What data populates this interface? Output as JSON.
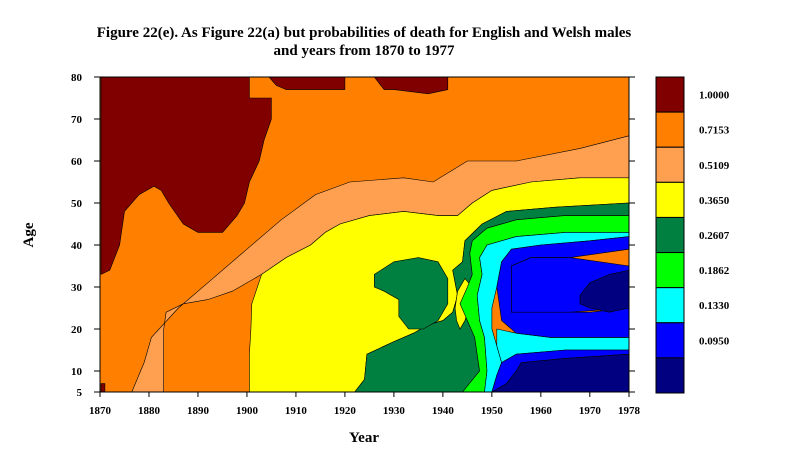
{
  "chart_data": {
    "type": "heatmap",
    "title": "Figure 22(e). As Figure 22(a) but probabilities of death for English and Welsh males",
    "subtitle": "and years from 1870 to 1977",
    "xlabel": "Year",
    "ylabel": "Age",
    "xlim": [
      1870,
      1978
    ],
    "ylim": [
      5,
      80
    ],
    "x_ticks": [
      "1870",
      "1880",
      "1890",
      "1900",
      "1910",
      "1920",
      "1930",
      "1940",
      "1950",
      "1960",
      "1970",
      "1978"
    ],
    "x_tick_values": [
      1870,
      1880,
      1890,
      1900,
      1910,
      1920,
      1930,
      1940,
      1950,
      1960,
      1970,
      1978
    ],
    "y_ticks": [
      "5",
      "10",
      "20",
      "30",
      "40",
      "50",
      "60",
      "70",
      "80"
    ],
    "y_tick_values": [
      5,
      10,
      20,
      30,
      40,
      50,
      60,
      70,
      80
    ],
    "legend": {
      "placement": "right",
      "levels": [
        {
          "label": "1.0000",
          "color": "#800000"
        },
        {
          "label": "0.7153",
          "color": "#ff8000"
        },
        {
          "label": "0.5109",
          "color": "#ffa050"
        },
        {
          "label": "0.3650",
          "color": "#ffff00"
        },
        {
          "label": "0.2607",
          "color": "#008040"
        },
        {
          "label": "0.1862",
          "color": "#00ff00"
        },
        {
          "label": "0.1330",
          "color": "#00ffff"
        },
        {
          "label": "0.0950",
          "color": "#0000ff"
        },
        {
          "label": "",
          "color": "#000080"
        }
      ]
    },
    "regions": [
      {
        "level": 0,
        "points": [
          [
            1870.2,
            80
          ],
          [
            1900.5,
            80
          ],
          [
            1900.5,
            75
          ],
          [
            1905,
            75
          ],
          [
            1905,
            70
          ],
          [
            1903.5,
            65
          ],
          [
            1902.5,
            60
          ],
          [
            1900.5,
            55
          ],
          [
            1899.5,
            50
          ],
          [
            1898,
            47
          ],
          [
            1895,
            43
          ],
          [
            1890,
            43
          ],
          [
            1887,
            45
          ],
          [
            1884,
            50
          ],
          [
            1882.5,
            53
          ],
          [
            1881,
            54
          ],
          [
            1878,
            52
          ],
          [
            1875,
            48
          ],
          [
            1874,
            40
          ],
          [
            1872,
            34
          ],
          [
            1870.2,
            33
          ]
        ]
      },
      {
        "level": 0,
        "points": [
          [
            1904.5,
            80
          ],
          [
            1920,
            80
          ],
          [
            1920,
            77
          ],
          [
            1912,
            77
          ],
          [
            1908,
            77
          ],
          [
            1906,
            78
          ]
        ]
      },
      {
        "level": 0,
        "points": [
          [
            1926,
            80
          ],
          [
            1941,
            80
          ],
          [
            1941,
            77
          ],
          [
            1937,
            76
          ],
          [
            1930,
            77
          ],
          [
            1928,
            77
          ]
        ]
      },
      {
        "level": 2,
        "points": [
          [
            1876.5,
            5
          ],
          [
            1883,
            5
          ],
          [
            1883,
            10
          ],
          [
            1883,
            15
          ],
          [
            1883,
            20
          ],
          [
            1883.5,
            24
          ],
          [
            1887,
            26
          ],
          [
            1892,
            27
          ],
          [
            1897,
            29
          ],
          [
            1903,
            33
          ],
          [
            1908,
            37
          ],
          [
            1913,
            40
          ],
          [
            1916,
            43
          ],
          [
            1919,
            45
          ],
          [
            1925,
            47
          ],
          [
            1932,
            48
          ],
          [
            1939,
            47
          ],
          [
            1943,
            47
          ],
          [
            1946,
            50
          ],
          [
            1950,
            53
          ],
          [
            1958,
            55
          ],
          [
            1968,
            56
          ],
          [
            1978,
            56
          ],
          [
            1978,
            66
          ],
          [
            1968,
            63
          ],
          [
            1955,
            60
          ],
          [
            1945,
            60
          ],
          [
            1938,
            55
          ],
          [
            1932,
            56
          ],
          [
            1921,
            55
          ],
          [
            1914,
            52
          ],
          [
            1907,
            46
          ],
          [
            1900,
            39
          ],
          [
            1892,
            31
          ],
          [
            1886,
            25
          ],
          [
            1880.5,
            18
          ],
          [
            1879,
            12
          ]
        ]
      },
      {
        "level": 3,
        "points": [
          [
            1900.5,
            5
          ],
          [
            1915,
            5
          ],
          [
            1922,
            5
          ],
          [
            1924,
            8
          ],
          [
            1924.5,
            14
          ],
          [
            1930,
            17
          ],
          [
            1934,
            19
          ],
          [
            1937,
            21
          ],
          [
            1940,
            22
          ],
          [
            1942,
            24
          ],
          [
            1943,
            28
          ],
          [
            1942,
            34
          ],
          [
            1944,
            36
          ],
          [
            1944.5,
            41
          ],
          [
            1948,
            45
          ],
          [
            1953,
            48
          ],
          [
            1963,
            49
          ],
          [
            1978,
            50
          ],
          [
            1978,
            56
          ],
          [
            1968,
            56
          ],
          [
            1958,
            55
          ],
          [
            1950,
            53
          ],
          [
            1946,
            50
          ],
          [
            1943,
            47
          ],
          [
            1939,
            47
          ],
          [
            1932,
            48
          ],
          [
            1925,
            47
          ],
          [
            1919,
            45
          ],
          [
            1916,
            43
          ],
          [
            1913,
            40
          ],
          [
            1908,
            37
          ],
          [
            1903,
            33
          ],
          [
            1901,
            26
          ],
          [
            1900.8,
            20
          ],
          [
            1900.5,
            14
          ],
          [
            1900.5,
            10
          ]
        ]
      },
      {
        "level": 4,
        "points": [
          [
            1922,
            5
          ],
          [
            1947,
            5
          ],
          [
            1947.5,
            10
          ],
          [
            1946.5,
            18
          ],
          [
            1945,
            22
          ],
          [
            1943.5,
            26
          ],
          [
            1945,
            30
          ],
          [
            1946,
            33
          ],
          [
            1945.5,
            38
          ],
          [
            1946,
            41
          ],
          [
            1949,
            44
          ],
          [
            1955,
            46
          ],
          [
            1965,
            47
          ],
          [
            1978,
            47
          ],
          [
            1978,
            50
          ],
          [
            1963,
            49
          ],
          [
            1953,
            48
          ],
          [
            1948,
            45
          ],
          [
            1944.5,
            41
          ],
          [
            1944,
            36
          ],
          [
            1942,
            34
          ],
          [
            1943,
            28
          ],
          [
            1942,
            24
          ],
          [
            1940,
            22
          ],
          [
            1937,
            21
          ],
          [
            1934,
            19
          ],
          [
            1930,
            17
          ],
          [
            1924.5,
            14
          ],
          [
            1924,
            8
          ]
        ]
      },
      {
        "level": 4,
        "points": [
          [
            1926,
            33
          ],
          [
            1930,
            36
          ],
          [
            1935,
            37
          ],
          [
            1939,
            36
          ],
          [
            1941,
            32
          ],
          [
            1941,
            26
          ],
          [
            1939,
            22
          ],
          [
            1936,
            20
          ],
          [
            1933,
            20
          ],
          [
            1931,
            23
          ],
          [
            1931,
            27
          ],
          [
            1928,
            29
          ],
          [
            1926,
            30
          ]
        ]
      },
      {
        "level": 4,
        "points": [
          [
            1943.5,
            20
          ],
          [
            1944.5,
            22
          ],
          [
            1945.5,
            26
          ],
          [
            1946,
            30
          ],
          [
            1944.5,
            32
          ],
          [
            1943,
            29
          ],
          [
            1942.5,
            25
          ]
        ]
      },
      {
        "level": 3,
        "points": [
          [
            1942.5,
            25
          ],
          [
            1943,
            29
          ],
          [
            1944.5,
            32
          ],
          [
            1946,
            30
          ],
          [
            1945.5,
            26
          ],
          [
            1944.5,
            22
          ],
          [
            1943.5,
            20
          ],
          [
            1942.8,
            22
          ]
        ]
      },
      {
        "level": 5,
        "points": [
          [
            1944,
            5
          ],
          [
            1948.5,
            5
          ],
          [
            1949,
            10
          ],
          [
            1948.5,
            18
          ],
          [
            1947.5,
            22
          ],
          [
            1947,
            28
          ],
          [
            1948,
            33
          ],
          [
            1947.5,
            37
          ],
          [
            1949,
            40
          ],
          [
            1955,
            42
          ],
          [
            1965,
            43
          ],
          [
            1978,
            43
          ],
          [
            1978,
            47
          ],
          [
            1965,
            47
          ],
          [
            1955,
            46
          ],
          [
            1949,
            44
          ],
          [
            1946,
            41
          ],
          [
            1945.5,
            38
          ],
          [
            1946,
            33
          ],
          [
            1945,
            30
          ],
          [
            1943.5,
            26
          ],
          [
            1945,
            22
          ],
          [
            1946.5,
            18
          ],
          [
            1947.5,
            10
          ]
        ]
      },
      {
        "level": 6,
        "points": [
          [
            1948,
            5
          ],
          [
            1950,
            5
          ],
          [
            1951,
            9
          ],
          [
            1952,
            12
          ],
          [
            1951,
            16
          ],
          [
            1950,
            20
          ],
          [
            1950,
            25
          ],
          [
            1951,
            30
          ],
          [
            1952,
            36
          ],
          [
            1954,
            39
          ],
          [
            1960,
            40
          ],
          [
            1970,
            41
          ],
          [
            1978,
            42
          ],
          [
            1978,
            43
          ],
          [
            1965,
            43
          ],
          [
            1955,
            42
          ],
          [
            1949,
            40
          ],
          [
            1947.5,
            37
          ],
          [
            1948,
            33
          ],
          [
            1947,
            28
          ],
          [
            1947.5,
            22
          ],
          [
            1948.5,
            18
          ],
          [
            1949,
            10
          ],
          [
            1948.5,
            5
          ]
        ]
      },
      {
        "level": 6,
        "points": [
          [
            1952,
            12
          ],
          [
            1955,
            14
          ],
          [
            1965,
            15
          ],
          [
            1978,
            15
          ],
          [
            1978,
            18
          ],
          [
            1962,
            18
          ],
          [
            1955,
            19
          ],
          [
            1951,
            20
          ],
          [
            1951,
            16
          ]
        ]
      },
      {
        "level": 7,
        "points": [
          [
            1951,
            30
          ],
          [
            1952,
            22
          ],
          [
            1955,
            19
          ],
          [
            1962,
            18
          ],
          [
            1978,
            18
          ],
          [
            1978,
            25
          ],
          [
            1970,
            24
          ],
          [
            1965,
            24
          ],
          [
            1954,
            24
          ],
          [
            1954,
            30
          ],
          [
            1954,
            35
          ],
          [
            1958,
            37
          ],
          [
            1966,
            37
          ],
          [
            1978,
            39
          ],
          [
            1978,
            42
          ],
          [
            1970,
            41
          ],
          [
            1960,
            40
          ],
          [
            1954,
            39
          ],
          [
            1952,
            36
          ]
        ]
      },
      {
        "level": 7,
        "points": [
          [
            1950,
            5
          ],
          [
            1953,
            7
          ],
          [
            1955,
            10
          ],
          [
            1956,
            12
          ],
          [
            1965,
            13
          ],
          [
            1978,
            14
          ],
          [
            1978,
            15
          ],
          [
            1965,
            15
          ],
          [
            1955,
            14
          ],
          [
            1952,
            12
          ],
          [
            1951,
            9
          ]
        ]
      },
      {
        "level": 7,
        "points": [
          [
            1954,
            24
          ],
          [
            1966,
            24
          ],
          [
            1978,
            25
          ],
          [
            1978,
            35
          ],
          [
            1966,
            37
          ],
          [
            1958,
            37
          ],
          [
            1954,
            35
          ],
          [
            1954,
            30
          ]
        ]
      },
      {
        "level": 8,
        "points": [
          [
            1950,
            5
          ],
          [
            1978,
            5
          ],
          [
            1978,
            14
          ],
          [
            1965,
            13
          ],
          [
            1956,
            12
          ],
          [
            1955,
            10
          ],
          [
            1953,
            7
          ]
        ]
      },
      {
        "level": 8,
        "points": [
          [
            1968,
            28
          ],
          [
            1970,
            31
          ],
          [
            1974,
            33
          ],
          [
            1978,
            34
          ],
          [
            1978,
            25
          ],
          [
            1974,
            24
          ],
          [
            1970,
            25
          ],
          [
            1968,
            26
          ]
        ]
      },
      {
        "level": 0,
        "points": [
          [
            1870.2,
            5
          ],
          [
            1871,
            5
          ],
          [
            1871,
            7
          ],
          [
            1870.2,
            7
          ]
        ]
      }
    ]
  }
}
